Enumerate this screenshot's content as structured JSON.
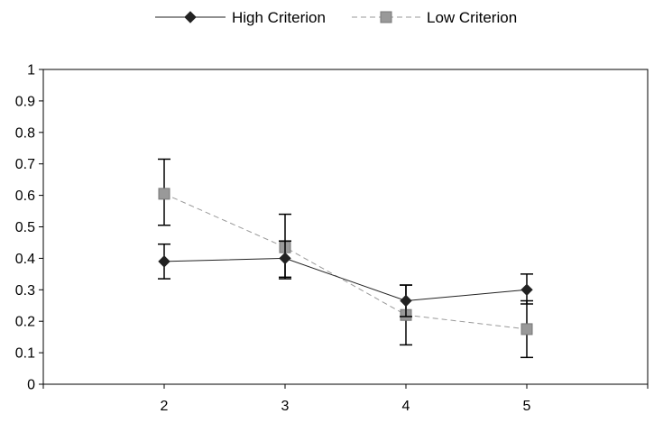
{
  "chart_data": {
    "type": "line",
    "title": "",
    "xlabel": "",
    "ylabel": "",
    "x": [
      2,
      3,
      4,
      5
    ],
    "xlim": [
      1,
      6
    ],
    "ylim": [
      0,
      1
    ],
    "yticks": [
      "0",
      "0.1",
      "0.2",
      "0.3",
      "0.4",
      "0.5",
      "0.6",
      "0.7",
      "0.8",
      "0.9",
      "1"
    ],
    "xticks": [
      "2",
      "3",
      "4",
      "5"
    ],
    "grid": false,
    "legend_position": "top-center",
    "series": [
      {
        "name": "High Criterion",
        "values": [
          0.39,
          0.4,
          0.265,
          0.3
        ],
        "error_low": [
          0.335,
          0.34,
          0.215,
          0.255
        ],
        "error_high": [
          0.445,
          0.455,
          0.315,
          0.35
        ],
        "color": "#222222",
        "marker": "diamond",
        "line_style": "solid"
      },
      {
        "name": "Low Criterion",
        "values": [
          0.605,
          0.435,
          0.22,
          0.175
        ],
        "error_low": [
          0.505,
          0.335,
          0.125,
          0.085
        ],
        "error_high": [
          0.715,
          0.54,
          0.315,
          0.265
        ],
        "color": "#999999",
        "marker": "square",
        "line_style": "dashed"
      }
    ]
  }
}
